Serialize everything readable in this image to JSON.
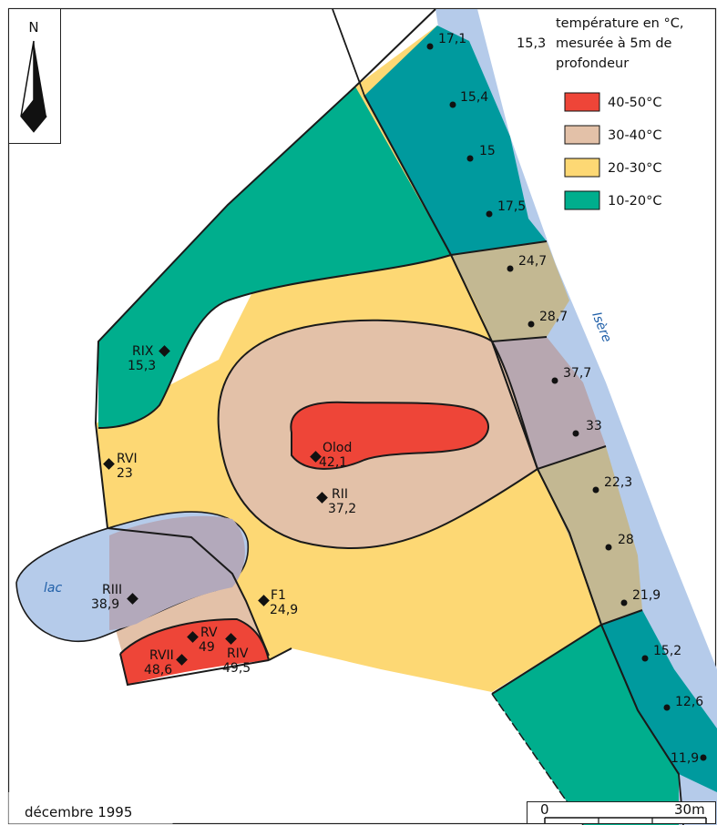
{
  "north_label": "N",
  "legend": {
    "sample_value": "15,3",
    "desc_lines": [
      "température en °C,",
      "mesurée à 5m de",
      "profondeur"
    ],
    "classes": [
      {
        "label": "40-50°C",
        "color": "#ee4538"
      },
      {
        "label": "30-40°C",
        "color": "#e3c1a8"
      },
      {
        "label": "20-30°C",
        "color": "#fdd874"
      },
      {
        "label": "10-20°C",
        "color": "#00ae8d"
      }
    ]
  },
  "colors": {
    "water": "#b5cbea",
    "teal_dark": "#009a9e",
    "olive": "#c3b892",
    "mauve": "#b7a7b0",
    "grey_purple": "#b3a9bb"
  },
  "river_label": "Isère",
  "lake_label": "lac",
  "date_label": "décembre 1995",
  "scale": {
    "start_label": "0",
    "end_label": "30m"
  },
  "river_points": [
    {
      "value": "17,1"
    },
    {
      "value": "15,4"
    },
    {
      "value": "15"
    },
    {
      "value": "17,5"
    },
    {
      "value": "24,7"
    },
    {
      "value": "28,7"
    },
    {
      "value": "37,7"
    },
    {
      "value": "33"
    },
    {
      "value": "22,3"
    },
    {
      "value": "28"
    },
    {
      "value": "21,9"
    },
    {
      "value": "15,2"
    },
    {
      "value": "12,6"
    },
    {
      "value": "11,9"
    }
  ],
  "wells": [
    {
      "name": "RIX",
      "value": "15,3"
    },
    {
      "name": "RVI",
      "value": "23"
    },
    {
      "name": "Olod",
      "value": "42,1"
    },
    {
      "name": "RII",
      "value": "37,2"
    },
    {
      "name": "RIII",
      "value": "38,9"
    },
    {
      "name": "F1",
      "value": "24,9"
    },
    {
      "name": "RV",
      "value": "49"
    },
    {
      "name": "RIV",
      "value": "49,5"
    },
    {
      "name": "RVII",
      "value": "48,6"
    }
  ]
}
